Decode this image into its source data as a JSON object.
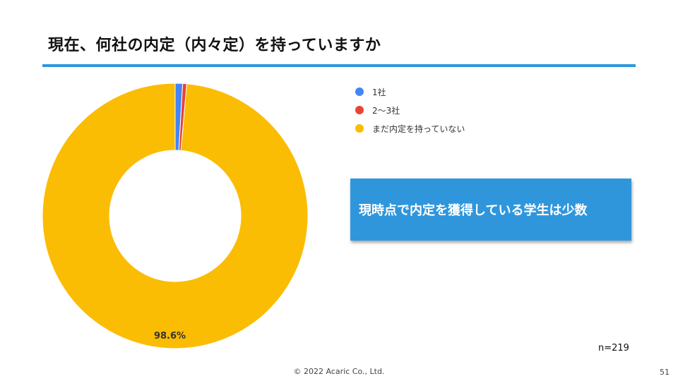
{
  "slide": {
    "title": "現在、何社の内定（内々定）を持っていますか",
    "callout": "現時点で内定を獲得している学生は少数",
    "sample_size": "n=219",
    "footer": "© 2022 Acaric Co., Ltd.",
    "page_number": "51",
    "accent_color": "#2f96dc"
  },
  "chart_data": {
    "type": "pie",
    "donut": true,
    "labels": [
      "1社",
      "2〜3社",
      "まだ内定を持っていない"
    ],
    "values": [
      0.9,
      0.5,
      98.6
    ],
    "colors": [
      "#4285f4",
      "#ea4335",
      "#fbbc04"
    ],
    "data_labels": [
      "",
      "",
      "98.6%"
    ],
    "legend_position": "top-right"
  }
}
